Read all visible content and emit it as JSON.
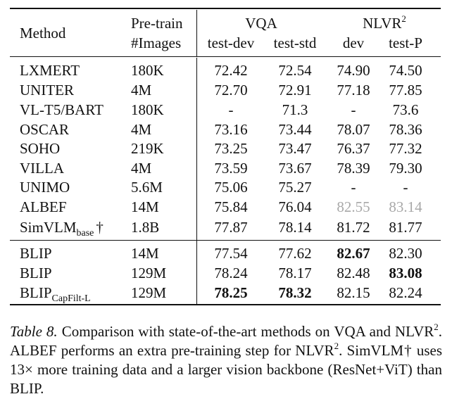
{
  "header": {
    "method": "Method",
    "pretrain_line1": "Pre-train",
    "pretrain_line2": "#Images",
    "vqa": "VQA",
    "nlvr": "NLVR",
    "nlvr_sup": "2",
    "test_dev": "test-dev",
    "test_std": "test-std",
    "dev": "dev",
    "test_p": "test-P"
  },
  "rows": [
    {
      "method": "LXMERT",
      "images": "180K",
      "test_dev": "72.42",
      "test_std": "72.54",
      "dev": "74.90",
      "test_p": "74.50"
    },
    {
      "method": "UNITER",
      "images": "4M",
      "test_dev": "72.70",
      "test_std": "72.91",
      "dev": "77.18",
      "test_p": "77.85"
    },
    {
      "method": "VL-T5/BART",
      "images": "180K",
      "test_dev": "-",
      "test_std": "71.3",
      "dev": "-",
      "test_p": "73.6"
    },
    {
      "method": "OSCAR",
      "images": "4M",
      "test_dev": "73.16",
      "test_std": "73.44",
      "dev": "78.07",
      "test_p": "78.36"
    },
    {
      "method": "SOHO",
      "images": "219K",
      "test_dev": "73.25",
      "test_std": "73.47",
      "dev": "76.37",
      "test_p": "77.32"
    },
    {
      "method": "VILLA",
      "images": "4M",
      "test_dev": "73.59",
      "test_std": "73.67",
      "dev": "78.39",
      "test_p": "79.30"
    },
    {
      "method": "UNIMO",
      "images": "5.6M",
      "test_dev": "75.06",
      "test_std": "75.27",
      "dev": "-",
      "test_p": "-"
    },
    {
      "method": "ALBEF",
      "images": "14M",
      "test_dev": "75.84",
      "test_std": "76.04",
      "dev": "82.55",
      "test_p": "83.14"
    },
    {
      "method": "SimVLM",
      "method_sub": "base",
      "method_suffix": "†",
      "images": "1.8B",
      "test_dev": "77.87",
      "test_std": "78.14",
      "dev": "81.72",
      "test_p": "81.77"
    },
    {
      "method": "BLIP",
      "images": "14M",
      "test_dev": "77.54",
      "test_std": "77.62",
      "dev": "82.67",
      "test_p": "82.30"
    },
    {
      "method": "BLIP",
      "images": "129M",
      "test_dev": "78.24",
      "test_std": "78.17",
      "dev": "82.48",
      "test_p": "83.08"
    },
    {
      "method": "BLIP",
      "method_sub": "CapFilt-L",
      "images": "129M",
      "test_dev": "78.25",
      "test_std": "78.32",
      "dev": "82.15",
      "test_p": "82.24"
    }
  ],
  "caption": {
    "label": "Table 8.",
    "t1": " Comparison with state-of-the-art methods on VQA and NLVR",
    "t1_sup": "2",
    "t2": ". ALBEF performs an extra pre-training step for NLVR",
    "t2_sup": "2",
    "t3": ". SimVLM† uses 13× more training data and a larger vision backbone (ResNet+ViT) than BLIP."
  },
  "styles": {
    "bold_cells": [
      "rows.9.dev",
      "rows.10.test_p",
      "rows.11.test_dev",
      "rows.11.test_std"
    ],
    "gray_cells": [
      "rows.7.dev",
      "rows.7.test_p"
    ],
    "text_color": "#111111",
    "gray_color": "#a8a8a8"
  }
}
